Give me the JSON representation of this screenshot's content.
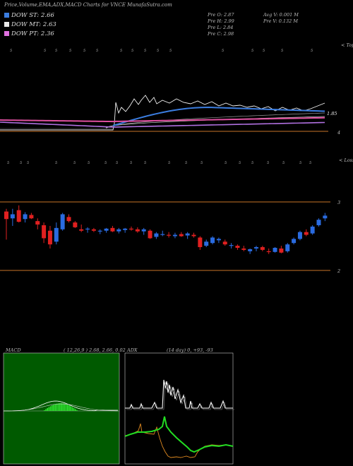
{
  "header": {
    "title": "Price,Volume,EMA,ADX,MACD Charts for VNCE MunafaSutra.com",
    "dow_lines": [
      {
        "text": "DOW ST: 2.66",
        "color": "#3b7de0"
      },
      {
        "text": "DOW MT: 2.63",
        "color": "#e8e8e8"
      },
      {
        "text": "DOW PT: 2.36",
        "color": "#e070e0"
      }
    ],
    "prev": [
      "Pre   O: 2.87",
      "Pre   H: 2.99",
      "Pre   L: 2.84",
      "Pre   C: 2.98"
    ],
    "avg": [
      "Avg V: 0.001  M",
      "Pre   V: 0.132  M"
    ]
  },
  "chart_data": [
    {
      "type": "line",
      "panel": "ema",
      "right_label": "1.85",
      "top_label": "< Topo",
      "bottom_label": "4"
    },
    {
      "type": "candlestick",
      "panel": "price",
      "top_label": "< Losses",
      "levels": [
        "3",
        "2"
      ],
      "candles": [
        {
          "o": 2.86,
          "h": 2.9,
          "l": 2.45,
          "c": 2.75
        },
        {
          "o": 2.76,
          "h": 2.9,
          "l": 2.65,
          "c": 2.82
        },
        {
          "o": 2.88,
          "h": 2.95,
          "l": 2.7,
          "c": 2.71
        },
        {
          "o": 2.75,
          "h": 2.85,
          "l": 2.7,
          "c": 2.82
        },
        {
          "o": 2.81,
          "h": 2.84,
          "l": 2.75,
          "c": 2.76
        },
        {
          "o": 2.72,
          "h": 2.76,
          "l": 2.6,
          "c": 2.67
        },
        {
          "o": 2.66,
          "h": 2.7,
          "l": 2.4,
          "c": 2.47
        },
        {
          "o": 2.58,
          "h": 2.65,
          "l": 2.32,
          "c": 2.38
        },
        {
          "o": 2.42,
          "h": 2.7,
          "l": 2.38,
          "c": 2.62
        },
        {
          "o": 2.6,
          "h": 2.84,
          "l": 2.58,
          "c": 2.82
        },
        {
          "o": 2.78,
          "h": 2.82,
          "l": 2.7,
          "c": 2.72
        },
        {
          "o": 2.7,
          "h": 2.72,
          "l": 2.62,
          "c": 2.63
        },
        {
          "o": 2.6,
          "h": 2.67,
          "l": 2.56,
          "c": 2.58
        },
        {
          "o": 2.6,
          "h": 2.63,
          "l": 2.55,
          "c": 2.61
        },
        {
          "o": 2.6,
          "h": 2.62,
          "l": 2.56,
          "c": 2.58
        },
        {
          "o": 2.57,
          "h": 2.6,
          "l": 2.53,
          "c": 2.58
        },
        {
          "o": 2.58,
          "h": 2.62,
          "l": 2.55,
          "c": 2.61
        },
        {
          "o": 2.62,
          "h": 2.65,
          "l": 2.56,
          "c": 2.57
        },
        {
          "o": 2.57,
          "h": 2.62,
          "l": 2.54,
          "c": 2.6
        },
        {
          "o": 2.59,
          "h": 2.62,
          "l": 2.55,
          "c": 2.61
        },
        {
          "o": 2.61,
          "h": 2.64,
          "l": 2.58,
          "c": 2.6
        },
        {
          "o": 2.6,
          "h": 2.63,
          "l": 2.55,
          "c": 2.57
        },
        {
          "o": 2.57,
          "h": 2.62,
          "l": 2.52,
          "c": 2.6
        },
        {
          "o": 2.58,
          "h": 2.6,
          "l": 2.46,
          "c": 2.47
        },
        {
          "o": 2.49,
          "h": 2.56,
          "l": 2.46,
          "c": 2.54
        },
        {
          "o": 2.52,
          "h": 2.58,
          "l": 2.5,
          "c": 2.53
        },
        {
          "o": 2.52,
          "h": 2.56,
          "l": 2.48,
          "c": 2.51
        },
        {
          "o": 2.5,
          "h": 2.55,
          "l": 2.47,
          "c": 2.52
        },
        {
          "o": 2.53,
          "h": 2.56,
          "l": 2.49,
          "c": 2.5
        },
        {
          "o": 2.51,
          "h": 2.56,
          "l": 2.46,
          "c": 2.54
        },
        {
          "o": 2.52,
          "h": 2.55,
          "l": 2.48,
          "c": 2.5
        },
        {
          "o": 2.48,
          "h": 2.5,
          "l": 2.3,
          "c": 2.34
        },
        {
          "o": 2.36,
          "h": 2.45,
          "l": 2.34,
          "c": 2.42
        },
        {
          "o": 2.4,
          "h": 2.5,
          "l": 2.38,
          "c": 2.48
        },
        {
          "o": 2.44,
          "h": 2.48,
          "l": 2.4,
          "c": 2.46
        },
        {
          "o": 2.42,
          "h": 2.45,
          "l": 2.36,
          "c": 2.38
        },
        {
          "o": 2.36,
          "h": 2.4,
          "l": 2.32,
          "c": 2.37
        },
        {
          "o": 2.36,
          "h": 2.38,
          "l": 2.3,
          "c": 2.33
        },
        {
          "o": 2.32,
          "h": 2.36,
          "l": 2.28,
          "c": 2.3
        },
        {
          "o": 2.28,
          "h": 2.32,
          "l": 2.24,
          "c": 2.31
        },
        {
          "o": 2.32,
          "h": 2.36,
          "l": 2.28,
          "c": 2.34
        },
        {
          "o": 2.34,
          "h": 2.36,
          "l": 2.28,
          "c": 2.3
        },
        {
          "o": 2.28,
          "h": 2.32,
          "l": 2.24,
          "c": 2.27
        },
        {
          "o": 2.27,
          "h": 2.34,
          "l": 2.26,
          "c": 2.33
        },
        {
          "o": 2.32,
          "h": 2.36,
          "l": 2.25,
          "c": 2.26
        },
        {
          "o": 2.28,
          "h": 2.4,
          "l": 2.26,
          "c": 2.38
        },
        {
          "o": 2.4,
          "h": 2.48,
          "l": 2.38,
          "c": 2.46
        },
        {
          "o": 2.46,
          "h": 2.58,
          "l": 2.44,
          "c": 2.56
        },
        {
          "o": 2.56,
          "h": 2.6,
          "l": 2.5,
          "c": 2.52
        },
        {
          "o": 2.54,
          "h": 2.66,
          "l": 2.52,
          "c": 2.64
        },
        {
          "o": 2.66,
          "h": 2.76,
          "l": 2.64,
          "c": 2.74
        },
        {
          "o": 2.76,
          "h": 2.84,
          "l": 2.72,
          "c": 2.8
        }
      ]
    },
    {
      "type": "area",
      "panel": "macd",
      "title": "MACD",
      "params": "( 12,26,9 ) 2.68,  2.66,  0.02"
    },
    {
      "type": "line",
      "panel": "adx",
      "title": "ADX",
      "params": "(14  day) 0,  +93,  -93"
    }
  ]
}
